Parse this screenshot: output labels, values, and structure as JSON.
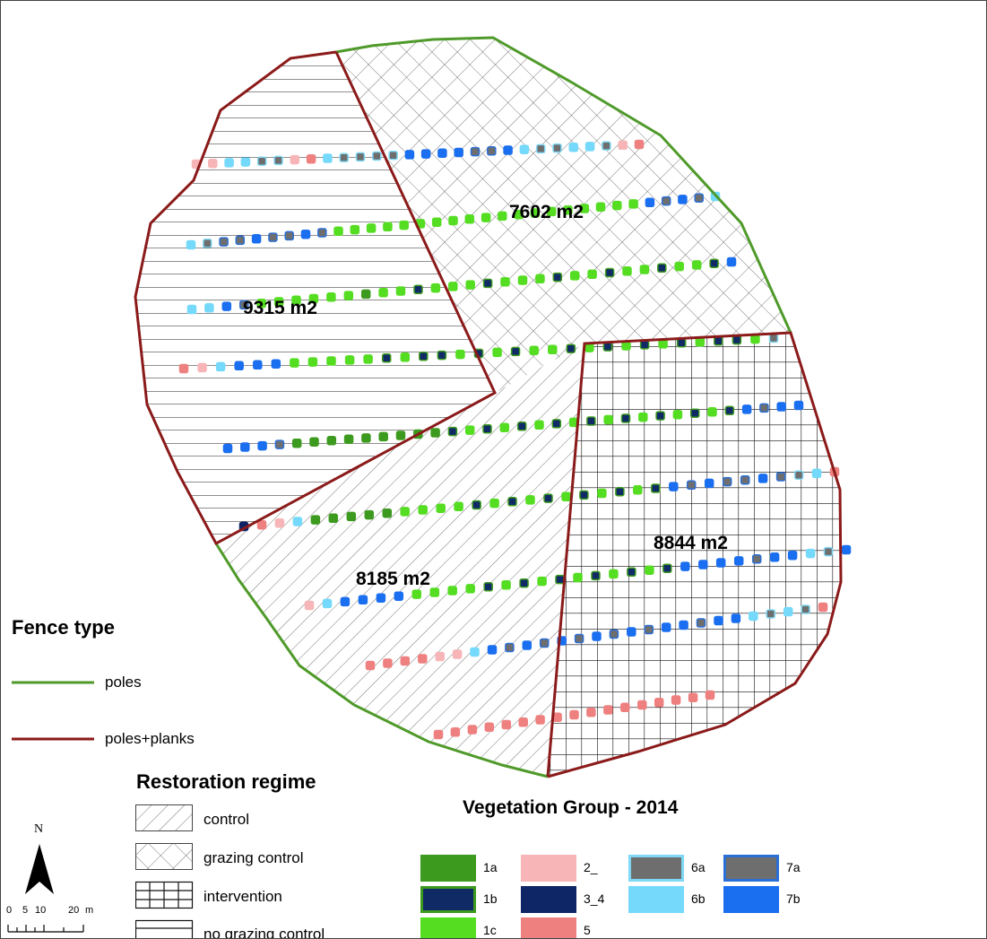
{
  "areas": {
    "grazing_control": "7602 m2",
    "no_grazing_control": "9315 m2",
    "control": "8185 m2",
    "intervention": "8844 m2"
  },
  "fence_legend": {
    "title": "Fence type",
    "items": [
      {
        "label": "poles",
        "color": "#4f9a2a"
      },
      {
        "label": "poles+planks",
        "color": "#8b1a1a"
      }
    ]
  },
  "restoration_legend": {
    "title": "Restoration regime",
    "items": [
      {
        "label": "control",
        "pattern": "diagonal-hatch"
      },
      {
        "label": "grazing control",
        "pattern": "cross-hatch"
      },
      {
        "label": "intervention",
        "pattern": "grid"
      },
      {
        "label": "no grazing control",
        "pattern": "horizontal-lines"
      }
    ]
  },
  "vegetation_legend": {
    "title": "Vegetation Group - 2014",
    "items": [
      {
        "label": "1a",
        "color": "#3c9a1e",
        "border": "#3c9a1e"
      },
      {
        "label": "1b",
        "color": "#102a66",
        "border": "#3c9a1e"
      },
      {
        "label": "1c",
        "color": "#55dd22",
        "border": "#55dd22"
      },
      {
        "label": "2_",
        "color": "#f7b5b8",
        "border": "#f7b5b8"
      },
      {
        "label": "3_4",
        "color": "#0e2566",
        "border": "#0e2566"
      },
      {
        "label": "5",
        "color": "#ef8080",
        "border": "#ef8080"
      },
      {
        "label": "6a",
        "color": "#6e6e6e",
        "border": "#7fd8f5"
      },
      {
        "label": "6b",
        "color": "#74d9fb",
        "border": "#74d9fb"
      },
      {
        "label": "7a",
        "color": "#6e6e6e",
        "border": "#2a6fd6"
      },
      {
        "label": "7b",
        "color": "#1a6ef0",
        "border": "#1a6ef0"
      }
    ]
  },
  "north_arrow": {
    "label": "N",
    "icon": "north-arrow-icon"
  },
  "scale_bar": {
    "ticks": [
      "0",
      "5",
      "10",
      "20"
    ],
    "unit": "m"
  }
}
